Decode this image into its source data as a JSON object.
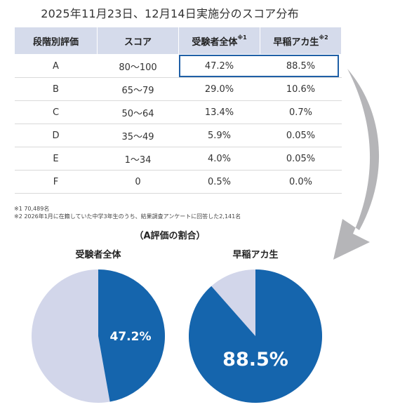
{
  "title": "2025年11月23日、12月14日実施分のスコア分布",
  "table": {
    "headers": [
      "段階別評価",
      "スコア",
      "受験者全体",
      "早稲アカ生"
    ],
    "header_notes": [
      "",
      "",
      "※1",
      "※2"
    ],
    "rows": [
      [
        "A",
        "80〜100",
        "47.2%",
        "88.5%"
      ],
      [
        "B",
        "65〜79",
        "29.0%",
        "10.6%"
      ],
      [
        "C",
        "50〜64",
        "13.4%",
        "0.7%"
      ],
      [
        "D",
        "35〜49",
        "5.9%",
        "0.05%"
      ],
      [
        "E",
        "1〜34",
        "4.0%",
        "0.05%"
      ],
      [
        "F",
        "0",
        "0.5%",
        "0.0%"
      ]
    ]
  },
  "notes": [
    "※1 70,489名",
    "※2 2026年1月に在籍していた中学3年生のうち、結果調査アンケートに回答した2,141名"
  ],
  "colors": {
    "accent": "#1565ad",
    "rest": "#d2d6ea",
    "header_bg": "#d5dbeb",
    "arrow": "#b5b5b8"
  },
  "chart_data": {
    "type": "pie",
    "title": "（A評価の割合）",
    "charts": [
      {
        "label": "受験者全体",
        "value": 47.2,
        "value_label": "47.2%"
      },
      {
        "label": "早稲アカ生",
        "value": 88.5,
        "value_label": "88.5%"
      }
    ]
  }
}
